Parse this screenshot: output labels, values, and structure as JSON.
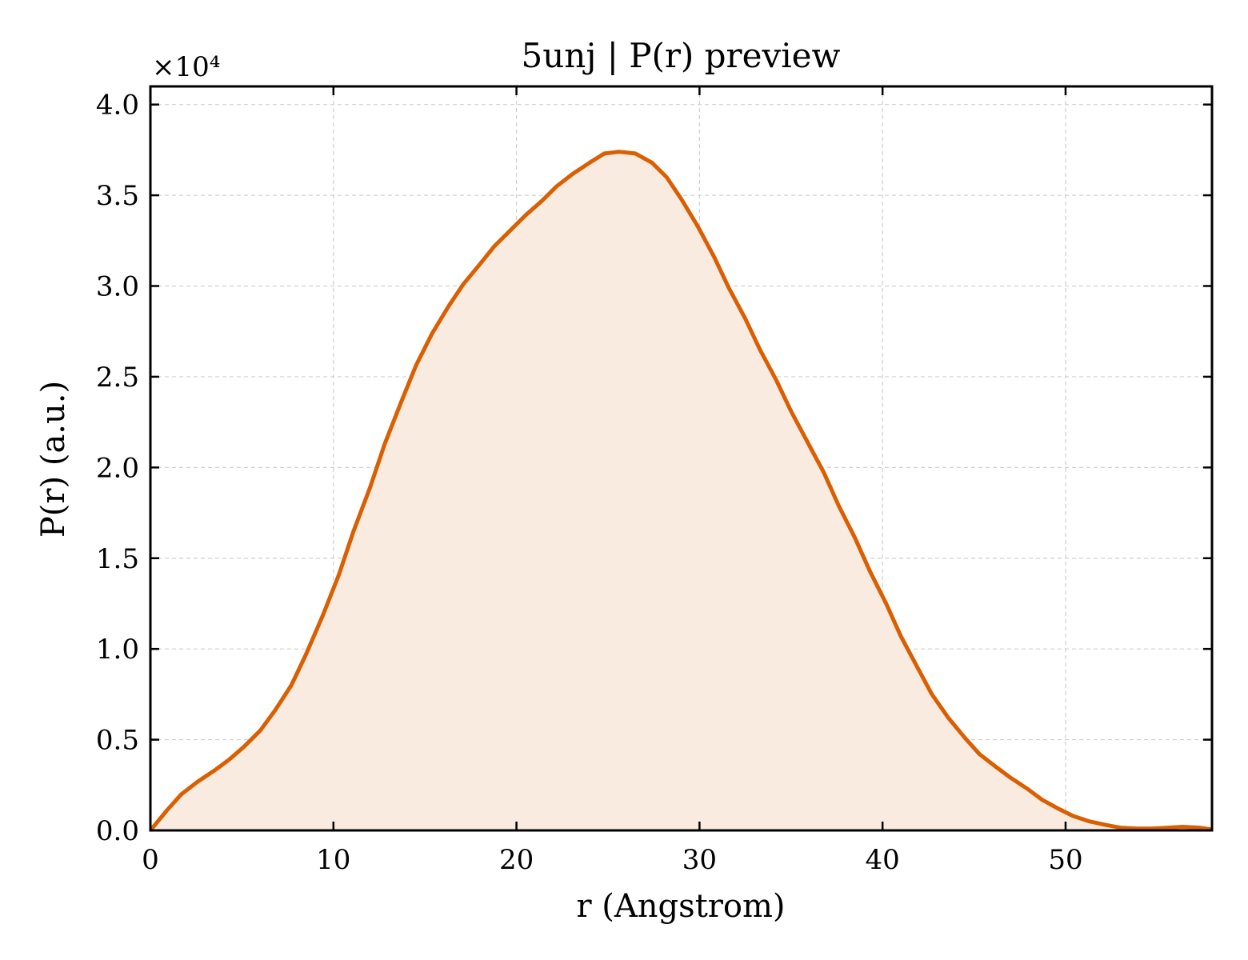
{
  "chart_data": {
    "type": "area",
    "title": "5unj | P(r) preview",
    "xlabel": "r (Angstrom)",
    "ylabel": "P(r) (a.u.)",
    "y_offset_label": "×10⁴",
    "xlim": [
      0,
      58
    ],
    "ylim": [
      0,
      4.1
    ],
    "y_scale_factor": 10000,
    "grid": true,
    "x_ticks": [
      0,
      10,
      20,
      30,
      40,
      50
    ],
    "x_tick_labels": [
      "0",
      "10",
      "20",
      "30",
      "40",
      "50"
    ],
    "y_ticks": [
      0,
      0.5,
      1.0,
      1.5,
      2.0,
      2.5,
      3.0,
      3.5,
      4.0
    ],
    "y_tick_labels": [
      "0.0",
      "0.5",
      "1.0",
      "1.5",
      "2.0",
      "2.5",
      "3.0",
      "3.5",
      "4.0"
    ],
    "line_color": "#d95f02",
    "fill_color": "#f9ebe0",
    "series": [
      {
        "x": [
          0,
          0.9,
          1.7,
          2.6,
          3.5,
          4.3,
          5.1,
          6.0,
          6.8,
          7.7,
          8.5,
          9.4,
          10.3,
          11.1,
          12.0,
          12.8,
          13.7,
          14.5,
          15.4,
          16.3,
          17.1,
          18.0,
          18.8,
          19.7,
          20.5,
          21.4,
          22.2,
          23.1,
          24.0,
          24.8,
          25.6,
          26.5,
          27.4,
          28.2,
          29.0,
          29.9,
          30.8,
          31.6,
          32.5,
          33.3,
          34.2,
          35.0,
          35.9,
          36.8,
          37.6,
          38.5,
          39.3,
          40.2,
          41.0,
          41.9,
          42.7,
          43.6,
          44.5,
          45.3,
          46.2,
          47.0,
          47.9,
          48.7,
          49.6,
          50.4,
          51.3,
          52.2,
          53.0,
          53.9,
          54.7,
          55.6,
          56.4,
          57.3,
          58.0
        ],
        "y": [
          0,
          0.11,
          0.2,
          0.27,
          0.33,
          0.39,
          0.46,
          0.55,
          0.66,
          0.8,
          0.97,
          1.18,
          1.41,
          1.65,
          1.89,
          2.13,
          2.36,
          2.56,
          2.74,
          2.89,
          3.01,
          3.12,
          3.22,
          3.31,
          3.39,
          3.47,
          3.55,
          3.62,
          3.68,
          3.73,
          3.74,
          3.73,
          3.68,
          3.6,
          3.48,
          3.33,
          3.16,
          2.99,
          2.82,
          2.65,
          2.48,
          2.31,
          2.14,
          1.97,
          1.79,
          1.61,
          1.43,
          1.25,
          1.07,
          0.9,
          0.75,
          0.62,
          0.51,
          0.42,
          0.35,
          0.29,
          0.23,
          0.17,
          0.12,
          0.08,
          0.05,
          0.03,
          0.015,
          0.01,
          0.01,
          0.015,
          0.02,
          0.015,
          0.005
        ]
      }
    ]
  }
}
